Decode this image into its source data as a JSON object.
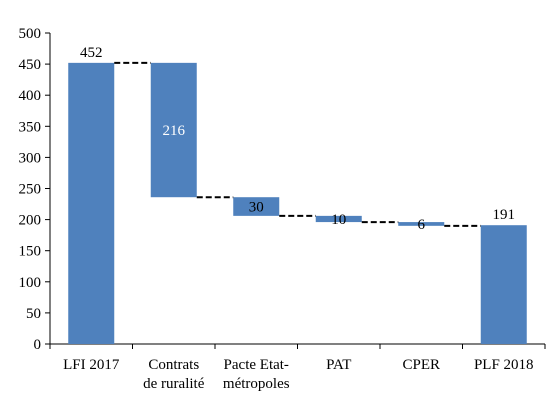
{
  "chart_data": {
    "type": "bar",
    "subtype": "waterfall",
    "title": "",
    "xlabel": "",
    "ylabel": "",
    "ylim": [
      0,
      500
    ],
    "yticks": [
      0,
      50,
      100,
      150,
      200,
      250,
      300,
      350,
      400,
      450,
      500
    ],
    "grid": false,
    "legend": "none",
    "categories": [
      "LFI 2017",
      "Contrats de ruralité",
      "Pacte Etat-métropoles",
      "PAT",
      "CPER",
      "PLF 2018"
    ],
    "category_lines": [
      [
        "LFI 2017"
      ],
      [
        "Contrats",
        "de ruralité"
      ],
      [
        "Pacte Etat-",
        "métropoles"
      ],
      [
        "PAT"
      ],
      [
        "CPER"
      ],
      [
        "PLF 2018"
      ]
    ],
    "bars": [
      {
        "category": "LFI 2017",
        "kind": "total",
        "start": 0,
        "end": 452,
        "label": "452"
      },
      {
        "category": "Contrats de ruralité",
        "kind": "decrease",
        "start": 452,
        "end": 236,
        "label": "216"
      },
      {
        "category": "Pacte Etat-métropoles",
        "kind": "decrease",
        "start": 236,
        "end": 206,
        "label": "30"
      },
      {
        "category": "PAT",
        "kind": "decrease",
        "start": 206,
        "end": 196,
        "label": "10"
      },
      {
        "category": "CPER",
        "kind": "decrease",
        "start": 196,
        "end": 190,
        "label": "6"
      },
      {
        "category": "PLF 2018",
        "kind": "total",
        "start": 0,
        "end": 191,
        "label": "191"
      }
    ],
    "bar_color": "#4f81bd",
    "connector_color": "#000000"
  }
}
